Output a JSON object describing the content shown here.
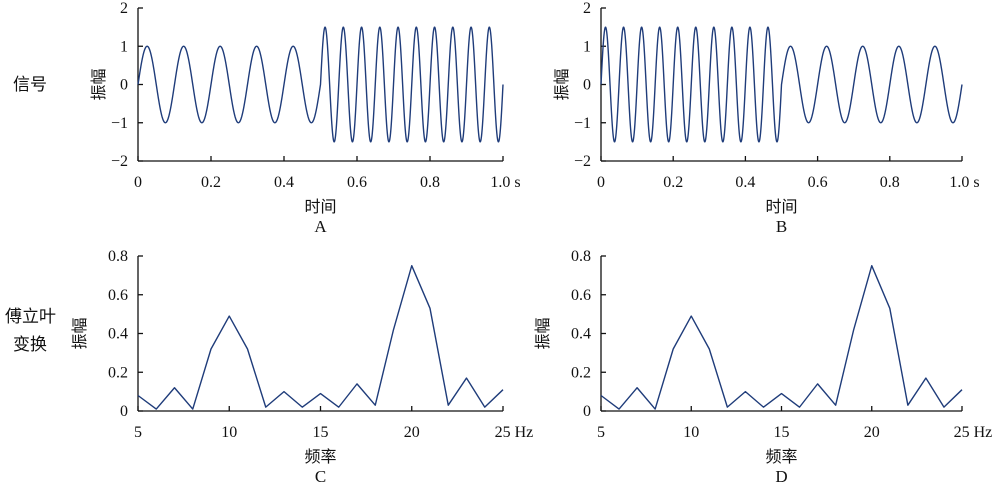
{
  "row_labels": {
    "signal": "信号",
    "fourier_line1": "傅立叶",
    "fourier_line2": "变换"
  },
  "line_color": "#1f3c7a",
  "chart_data": [
    {
      "panel": "A",
      "type": "line",
      "xlabel": "时间",
      "ylabel": "振幅",
      "xlim": [
        0,
        1.0
      ],
      "ylim": [
        -2,
        2
      ],
      "x_ticks": [
        0,
        0.2,
        0.4,
        0.6,
        0.8,
        1.0
      ],
      "x_tick_labels": [
        "0",
        "0.2",
        "0.4",
        "0.6",
        "0.8",
        "1.0 s"
      ],
      "y_ticks": [
        -2,
        -1,
        0,
        1,
        2
      ],
      "y_tick_labels": [
        "−2",
        "−1",
        "0",
        "1",
        "2"
      ],
      "segments": [
        {
          "t_start": 0.0,
          "t_end": 0.5,
          "frequency_hz": 10,
          "amplitude": 1.0
        },
        {
          "t_start": 0.5,
          "t_end": 1.0,
          "frequency_hz": 20,
          "amplitude": 1.5
        }
      ]
    },
    {
      "panel": "B",
      "type": "line",
      "xlabel": "时间",
      "ylabel": "振幅",
      "xlim": [
        0,
        1.0
      ],
      "ylim": [
        -2,
        2
      ],
      "x_ticks": [
        0,
        0.2,
        0.4,
        0.6,
        0.8,
        1.0
      ],
      "x_tick_labels": [
        "0",
        "0.2",
        "0.4",
        "0.6",
        "0.8",
        "1.0 s"
      ],
      "y_ticks": [
        -2,
        -1,
        0,
        1,
        2
      ],
      "y_tick_labels": [
        "−2",
        "−1",
        "0",
        "1",
        "2"
      ],
      "segments": [
        {
          "t_start": 0.0,
          "t_end": 0.5,
          "frequency_hz": 20,
          "amplitude": 1.5
        },
        {
          "t_start": 0.5,
          "t_end": 1.0,
          "frequency_hz": 10,
          "amplitude": 1.0
        }
      ]
    },
    {
      "panel": "C",
      "type": "line",
      "xlabel": "频率",
      "ylabel": "振幅",
      "xlim": [
        5,
        25
      ],
      "ylim": [
        0,
        0.8
      ],
      "x_ticks": [
        5,
        10,
        15,
        20,
        25
      ],
      "x_tick_labels": [
        "5",
        "10",
        "15",
        "20",
        "25 Hz"
      ],
      "y_ticks": [
        0,
        0.2,
        0.4,
        0.6,
        0.8
      ],
      "y_tick_labels": [
        "0",
        "0.2",
        "0.4",
        "0.6",
        "0.8"
      ],
      "x": [
        5,
        6,
        7,
        8,
        9,
        10,
        11,
        12,
        13,
        14,
        15,
        16,
        17,
        18,
        19,
        20,
        21,
        22,
        23,
        24,
        25
      ],
      "values": [
        0.08,
        0.01,
        0.12,
        0.01,
        0.32,
        0.49,
        0.32,
        0.02,
        0.1,
        0.02,
        0.09,
        0.02,
        0.14,
        0.03,
        0.42,
        0.75,
        0.53,
        0.03,
        0.17,
        0.02,
        0.11
      ]
    },
    {
      "panel": "D",
      "type": "line",
      "xlabel": "频率",
      "ylabel": "振幅",
      "xlim": [
        5,
        25
      ],
      "ylim": [
        0,
        0.8
      ],
      "x_ticks": [
        5,
        10,
        15,
        20,
        25
      ],
      "x_tick_labels": [
        "5",
        "10",
        "15",
        "20",
        "25 Hz"
      ],
      "y_ticks": [
        0,
        0.2,
        0.4,
        0.6,
        0.8
      ],
      "y_tick_labels": [
        "0",
        "0.2",
        "0.4",
        "0.6",
        "0.8"
      ],
      "x": [
        5,
        6,
        7,
        8,
        9,
        10,
        11,
        12,
        13,
        14,
        15,
        16,
        17,
        18,
        19,
        20,
        21,
        22,
        23,
        24,
        25
      ],
      "values": [
        0.08,
        0.01,
        0.12,
        0.01,
        0.32,
        0.49,
        0.32,
        0.02,
        0.1,
        0.02,
        0.09,
        0.02,
        0.14,
        0.03,
        0.42,
        0.75,
        0.53,
        0.03,
        0.17,
        0.02,
        0.11
      ]
    }
  ]
}
